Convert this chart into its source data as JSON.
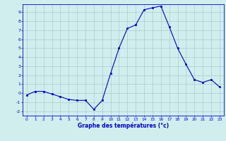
{
  "hours": [
    0,
    1,
    2,
    3,
    4,
    5,
    6,
    7,
    8,
    9,
    10,
    11,
    12,
    13,
    14,
    15,
    16,
    17,
    18,
    19,
    20,
    21,
    22,
    23
  ],
  "temperatures": [
    -0.2,
    0.2,
    0.2,
    -0.1,
    -0.4,
    -0.7,
    -0.8,
    -0.8,
    -1.8,
    -0.8,
    2.2,
    5.0,
    7.2,
    7.6,
    9.3,
    9.5,
    9.7,
    7.4,
    5.0,
    3.2,
    1.5,
    1.2,
    1.5,
    0.7
  ],
  "line_color": "#0000cc",
  "marker": "s",
  "marker_size": 2,
  "bg_color": "#d0eeee",
  "grid_color": "#aacccc",
  "axis_color": "#0000cc",
  "xlabel": "Graphe des températures (°c)",
  "xlim": [
    -0.5,
    23.5
  ],
  "ylim": [
    -2.5,
    9.9
  ],
  "yticks": [
    -2,
    -1,
    0,
    1,
    2,
    3,
    4,
    5,
    6,
    7,
    8,
    9
  ],
  "xticks": [
    0,
    1,
    2,
    3,
    4,
    5,
    6,
    7,
    8,
    9,
    10,
    11,
    12,
    13,
    14,
    15,
    16,
    17,
    18,
    19,
    20,
    21,
    22,
    23
  ]
}
